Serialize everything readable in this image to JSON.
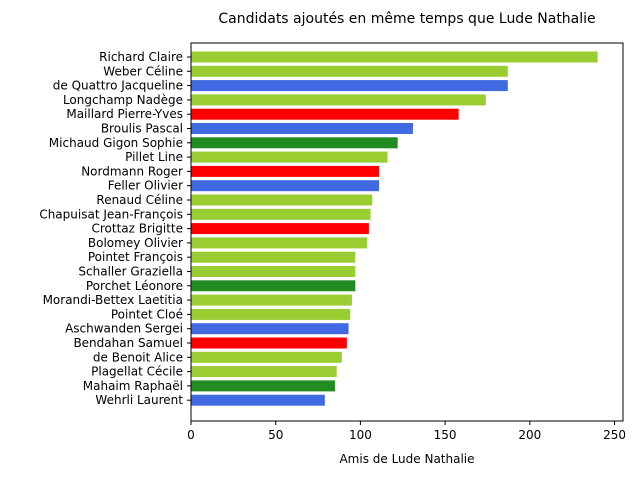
{
  "chart_data": {
    "type": "bar",
    "orientation": "horizontal",
    "title": "Candidats ajoutés en même temps que Lude Nathalie",
    "xlabel": "Amis de Lude Nathalie",
    "ylabel": "",
    "xlim": [
      0,
      255
    ],
    "xticks": [
      0,
      50,
      100,
      150,
      200,
      250
    ],
    "grid": false,
    "categories": [
      "Richard Claire",
      "Weber Céline",
      "de Quattro Jacqueline",
      "Longchamp Nadège",
      "Maillard Pierre-Yves",
      "Broulis Pascal",
      "Michaud Gigon Sophie",
      "Pillet Line",
      "Nordmann Roger",
      "Feller Olivier",
      "Renaud Céline",
      "Chapuisat Jean-François",
      "Crottaz Brigitte",
      "Bolomey Olivier",
      "Pointet François",
      "Schaller Graziella",
      "Porchet Léonore",
      "Morandi-Bettex Laetitia",
      "Pointet Cloé",
      "Aschwanden Sergei",
      "Bendahan Samuel",
      "de Benoit Alice",
      "Plagellat Cécile",
      "Mahaim Raphaël",
      "Wehrli Laurent"
    ],
    "values": [
      240,
      187,
      187,
      174,
      158,
      131,
      122,
      116,
      111,
      111,
      107,
      106,
      105,
      104,
      97,
      97,
      97,
      95,
      94,
      93,
      92,
      89,
      86,
      85,
      79
    ],
    "bar_colors": [
      "#9acd32",
      "#9acd32",
      "#4169e1",
      "#9acd32",
      "#ff0000",
      "#4169e1",
      "#228b22",
      "#9acd32",
      "#ff0000",
      "#4169e1",
      "#9acd32",
      "#9acd32",
      "#ff0000",
      "#9acd32",
      "#9acd32",
      "#9acd32",
      "#228b22",
      "#9acd32",
      "#9acd32",
      "#4169e1",
      "#ff0000",
      "#9acd32",
      "#9acd32",
      "#228b22",
      "#4169e1"
    ]
  }
}
